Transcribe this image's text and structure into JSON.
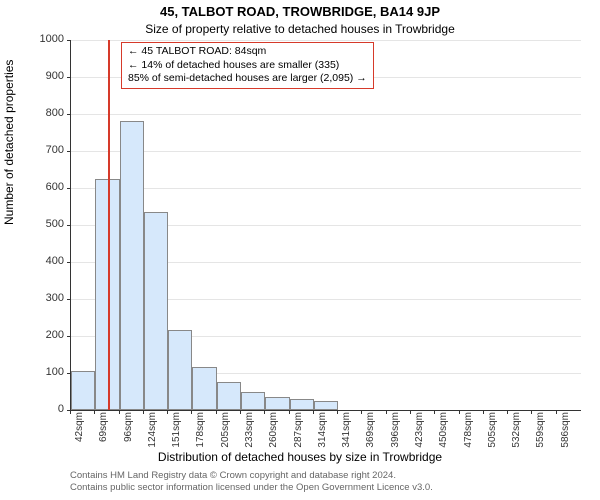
{
  "titles": {
    "line1": "45, TALBOT ROAD, TROWBRIDGE, BA14 9JP",
    "line2": "Size of property relative to detached houses in Trowbridge"
  },
  "ylabel": "Number of detached properties",
  "xlabel": "Distribution of detached houses by size in Trowbridge",
  "credits": {
    "line1": "Contains HM Land Registry data © Crown copyright and database right 2024.",
    "line2": "Contains public sector information licensed under the Open Government Licence v3.0."
  },
  "chart": {
    "type": "bar",
    "ylim": [
      0,
      1000
    ],
    "ytick_step": 100,
    "bar_fill": "#d6e8fb",
    "bar_stroke": "#888888",
    "grid_color": "#e5e5e5",
    "background_color": "#ffffff",
    "tick_fontsize": 11,
    "label_fontsize": 12,
    "title_fontsize": 13,
    "x_start": 42,
    "x_step": 27.22,
    "x_count": 21,
    "x_unit": "sqm",
    "values": [
      105,
      625,
      780,
      535,
      215,
      115,
      75,
      50,
      35,
      30,
      25,
      0,
      0,
      0,
      0,
      0,
      0,
      0,
      0,
      0,
      0
    ],
    "bar_width_ratio": 1.0
  },
  "marker": {
    "value": 84,
    "color": "#d63a2a",
    "annot_border": "#d63a2a",
    "annot_lines": {
      "l1": "← 45 TALBOT ROAD: 84sqm",
      "l2": "← 14% of detached houses are smaller (335)",
      "l3": "85% of semi-detached houses are larger (2,095) →"
    }
  }
}
